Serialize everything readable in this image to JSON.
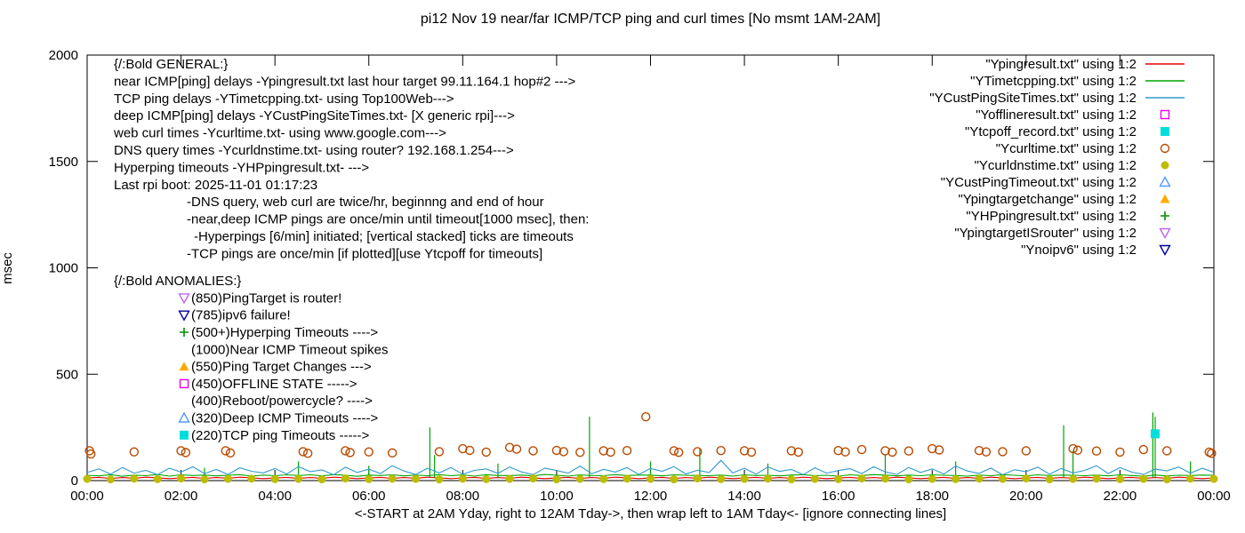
{
  "annotations": {
    "general": {
      "header": "{/:Bold GENERAL:}",
      "lines": [
        {
          "text": "near ICMP[ping] delays -Ypingresult.txt last hour target 99.11.164.1 hop#2 --->",
          "indent": 0
        },
        {
          "text": "TCP ping delays -YTimetcpping.txt- using Top100Web--->",
          "indent": 0
        },
        {
          "text": "deep ICMP[ping] delays -YCustPingSiteTimes.txt- [X generic rpi]--->",
          "indent": 0
        },
        {
          "text": "web curl times -Ycurltime.txt- using www.google.com--->",
          "indent": 0
        },
        {
          "text": "DNS query times -Ycurldnstime.txt- using router? 192.168.1.254--->",
          "indent": 0
        },
        {
          "text": "Hyperping timeouts -YHPpingresult.txt- --->",
          "indent": 0
        },
        {
          "text": "Last rpi boot: 2025-11-01 01:17:23",
          "indent": 0
        },
        {
          "text": "-DNS query, web curl are twice/hr, beginnng and end of hour",
          "indent": 1
        },
        {
          "text": "-near,deep ICMP pings are once/min until timeout[1000 msec], then:",
          "indent": 1
        },
        {
          "text": "-Hyperpings [6/min] initiated; [vertical stacked] ticks are timeouts",
          "indent": 2
        },
        {
          "text": "-TCP pings are once/min [if plotted][use Ytcpoff for timeouts]",
          "indent": 1
        }
      ]
    },
    "anomalies": {
      "header": "{/:Bold ANOMALIES:}",
      "items": [
        {
          "marker": "triangle-down-open",
          "color": "#bb66ee",
          "label": "(850)PingTarget is router!"
        },
        {
          "marker": "triangle-down-open",
          "color": "#000099",
          "label": "(785)ipv6 failure!"
        },
        {
          "marker": "plus",
          "color": "#009000",
          "label": "(500+)Hyperping Timeouts ---->"
        },
        {
          "marker": null,
          "color": null,
          "label": "(1000)Near ICMP Timeout spikes"
        },
        {
          "marker": "triangle-up-filled",
          "color": "#ffaa00",
          "label": "(550)Ping Target Changes --->"
        },
        {
          "marker": "square-open",
          "color": "#ee00ee",
          "label": "(450)OFFLINE STATE ----->"
        },
        {
          "marker": null,
          "color": null,
          "label": "(400)Reboot/powercycle? ---->"
        },
        {
          "marker": "triangle-up-open",
          "color": "#5599ff",
          "label": "(320)Deep ICMP Timeouts ---->"
        },
        {
          "marker": "square-filled",
          "color": "#00dddd",
          "label": "(220)TCP ping Timeouts ----->"
        }
      ]
    }
  },
  "chart_data": {
    "type": "line",
    "title": "pi12 Nov 19  near/far ICMP/TCP ping and curl times [No msmt 1AM-2AM]",
    "xlabel": "<-START at 2AM Yday, right to 12AM Tday->, then wrap left to 1AM Tday<- [ignore connecting lines]",
    "ylabel": "msec",
    "ylim": [
      0,
      2000
    ],
    "x_hours": [
      0,
      24
    ],
    "y_ticks": [
      0,
      500,
      1000,
      1500,
      2000
    ],
    "x_tick_labels": [
      "00:00",
      "02:00",
      "04:00",
      "06:00",
      "08:00",
      "10:00",
      "12:00",
      "14:00",
      "16:00",
      "18:00",
      "20:00",
      "22:00",
      "00:00"
    ],
    "grid": false,
    "legend_position": "top-right-outside-plot",
    "legend": [
      {
        "label": "\"Ypingresult.txt\" using 1:2",
        "marker": "line",
        "color": "#e60000"
      },
      {
        "label": "\"YTimetcpping.txt\" using 1:2",
        "marker": "line",
        "color": "#00a400"
      },
      {
        "label": "\"YCustPingSiteTimes.txt\" using 1:2",
        "marker": "line",
        "color": "#3399cc"
      },
      {
        "label": "\"Yofflineresult.txt\" using 1:2",
        "marker": "square-open",
        "color": "#ee00ee"
      },
      {
        "label": "\"Ytcpoff_record.txt\" using 1:2",
        "marker": "square-filled",
        "color": "#00dddd"
      },
      {
        "label": "\"Ycurltime.txt\" using 1:2",
        "marker": "circle-open",
        "color": "#b84a00"
      },
      {
        "label": "\"Ycurldnstime.txt\" using 1:2",
        "marker": "circle-filled",
        "color": "#bcbc00"
      },
      {
        "label": "\"YCustPingTimeout.txt\" using 1:2",
        "marker": "triangle-up-open",
        "color": "#5599ff"
      },
      {
        "label": "\"Ypingtargetchange\" using 1:2",
        "marker": "triangle-up-filled",
        "color": "#ffaa00"
      },
      {
        "label": "\"YHPpingresult.txt\" using 1:2",
        "marker": "plus",
        "color": "#009000"
      },
      {
        "label": "\"YpingtargetISrouter\" using 1:2",
        "marker": "triangle-down-open",
        "color": "#bb66ee"
      },
      {
        "label": "\"Ynoipv6\" using 1:2",
        "marker": "triangle-down-open",
        "color": "#000099"
      }
    ],
    "series": [
      {
        "name": "Ypingresult.txt",
        "type": "line",
        "color": "#e60000",
        "x_start": 0,
        "x_step": 0.25,
        "y": [
          12,
          15,
          10,
          14,
          11,
          16,
          13,
          9,
          12,
          15,
          10,
          14,
          11,
          16,
          13,
          9,
          12,
          15,
          10,
          14,
          11,
          16,
          13,
          9,
          12,
          15,
          10,
          14,
          11,
          16,
          13,
          9,
          12,
          15,
          10,
          14,
          11,
          16,
          13,
          9,
          12,
          15,
          10,
          14,
          11,
          16,
          13,
          9,
          12,
          15,
          10,
          14,
          11,
          16,
          13,
          9,
          12,
          15,
          10,
          14,
          11,
          16,
          13,
          9,
          12,
          15,
          10,
          14,
          11,
          16,
          13,
          9,
          12,
          15,
          10,
          14,
          11,
          16,
          13,
          9,
          12,
          15,
          10,
          14,
          11,
          16,
          13,
          9,
          12,
          15,
          10,
          14,
          11,
          16,
          13,
          9,
          12
        ]
      },
      {
        "name": "YTimetcpping.txt",
        "type": "line",
        "color": "#00a400",
        "x_start": 0,
        "x_step": 0.25,
        "y": [
          25,
          22,
          28,
          20,
          26,
          23,
          29,
          21,
          27,
          24,
          26,
          22,
          25,
          28,
          21,
          26,
          23,
          27,
          24,
          27,
          22,
          28,
          25,
          20,
          26,
          24,
          27,
          22,
          26,
          23,
          28,
          23,
          27,
          21,
          28,
          24,
          24,
          26,
          22,
          29,
          25,
          21,
          27,
          24,
          23,
          28,
          24,
          26,
          26,
          22,
          27,
          25,
          24,
          23,
          26,
          21,
          27,
          24,
          25,
          22,
          26,
          28,
          23,
          25,
          21,
          27,
          24,
          28,
          26,
          22,
          26,
          23,
          27,
          25,
          24,
          21,
          26,
          23,
          28,
          25,
          22,
          27,
          24,
          26,
          25,
          23,
          26,
          22,
          27,
          24,
          21,
          26,
          22,
          25,
          24,
          26,
          25
        ],
        "impulses": [
          [
            2.5,
            60
          ],
          [
            4.5,
            90
          ],
          [
            6.0,
            70
          ],
          [
            7.3,
            250
          ],
          [
            7.4,
            120
          ],
          [
            8.75,
            80
          ],
          [
            10.7,
            300
          ],
          [
            12.0,
            90
          ],
          [
            13.05,
            150
          ],
          [
            14.5,
            80
          ],
          [
            17.0,
            120
          ],
          [
            18.5,
            90
          ],
          [
            20.8,
            260
          ],
          [
            21.0,
            140
          ],
          [
            22.7,
            320
          ],
          [
            22.75,
            300
          ],
          [
            23.5,
            90
          ]
        ]
      },
      {
        "name": "YCustPingSiteTimes.txt",
        "type": "line",
        "color": "#3399cc",
        "x_start": 0,
        "x_step": 0.25,
        "y": [
          38,
          55,
          30,
          62,
          35,
          48,
          28,
          58,
          40,
          65,
          33,
          52,
          29,
          60,
          44,
          36,
          57,
          31,
          66,
          42,
          50,
          27,
          63,
          38,
          54,
          33,
          70,
          45,
          29,
          58,
          36,
          62,
          30,
          48,
          55,
          34,
          64,
          41,
          28,
          59,
          47,
          35,
          68,
          32,
          53,
          40,
          61,
          29,
          57,
          44,
          66,
          31,
          49,
          38,
          95,
          36,
          58,
          30,
          64,
          43,
          52,
          28,
          60,
          35,
          47,
          56,
          33,
          65,
          41,
          29,
          62,
          38,
          55,
          31,
          68,
          45,
          34,
          59,
          27,
          51,
          42,
          63,
          30,
          57,
          36,
          48,
          70,
          33,
          61,
          40,
          29,
          54,
          46,
          64,
          35,
          58,
          39
        ]
      },
      {
        "name": "Yofflineresult.txt",
        "type": "scatter",
        "marker": "square-open",
        "color": "#ee00ee",
        "points": []
      },
      {
        "name": "Ytcpoff_record.txt",
        "type": "scatter",
        "marker": "square-filled",
        "color": "#00dddd",
        "points": [
          [
            22.75,
            220
          ]
        ]
      },
      {
        "name": "Ycurltime.txt",
        "type": "scatter",
        "marker": "circle-open",
        "color": "#b84a00",
        "points": [
          [
            0.05,
            140
          ],
          [
            0.08,
            125
          ],
          [
            1.0,
            135
          ],
          [
            2.0,
            140
          ],
          [
            2.1,
            132
          ],
          [
            2.95,
            140
          ],
          [
            3.05,
            130
          ],
          [
            4.6,
            136
          ],
          [
            4.7,
            128
          ],
          [
            5.5,
            140
          ],
          [
            5.6,
            132
          ],
          [
            6.0,
            135
          ],
          [
            6.5,
            130
          ],
          [
            7.5,
            136
          ],
          [
            8.0,
            150
          ],
          [
            8.15,
            142
          ],
          [
            8.5,
            134
          ],
          [
            9.0,
            156
          ],
          [
            9.15,
            148
          ],
          [
            9.5,
            140
          ],
          [
            10.0,
            142
          ],
          [
            10.15,
            136
          ],
          [
            10.5,
            133
          ],
          [
            11.0,
            140
          ],
          [
            11.15,
            134
          ],
          [
            11.5,
            141
          ],
          [
            11.9,
            300
          ],
          [
            12.5,
            140
          ],
          [
            12.6,
            133
          ],
          [
            13.0,
            136
          ],
          [
            13.5,
            141
          ],
          [
            14.0,
            140
          ],
          [
            14.15,
            134
          ],
          [
            15.0,
            140
          ],
          [
            15.15,
            134
          ],
          [
            16.0,
            141
          ],
          [
            16.15,
            135
          ],
          [
            16.5,
            146
          ],
          [
            17.0,
            140
          ],
          [
            17.15,
            134
          ],
          [
            17.5,
            139
          ],
          [
            18.0,
            150
          ],
          [
            18.15,
            144
          ],
          [
            19.0,
            141
          ],
          [
            19.15,
            135
          ],
          [
            19.5,
            136
          ],
          [
            20.0,
            140
          ],
          [
            21.0,
            150
          ],
          [
            21.1,
            143
          ],
          [
            21.5,
            139
          ],
          [
            22.0,
            134
          ],
          [
            22.5,
            146
          ],
          [
            23.0,
            140
          ],
          [
            23.9,
            134
          ],
          [
            23.95,
            128
          ]
        ]
      },
      {
        "name": "Ycurldnstime.txt",
        "type": "scatter",
        "marker": "circle-filled",
        "color": "#bcbc00",
        "x_start": 0,
        "x_step": 0.5,
        "y": [
          8,
          6,
          9,
          7,
          10,
          6,
          8,
          9,
          7,
          8,
          6,
          10,
          7,
          9,
          8,
          6,
          9,
          7,
          8,
          10,
          6,
          8,
          7,
          9,
          8,
          6,
          10,
          7,
          8,
          9,
          6,
          8,
          7,
          10,
          9,
          6,
          8,
          7,
          9,
          8,
          10,
          6,
          8,
          9,
          7,
          8,
          6,
          9,
          8
        ]
      },
      {
        "name": "YCustPingTimeout.txt",
        "type": "scatter",
        "marker": "triangle-up-open",
        "color": "#5599ff",
        "points": []
      },
      {
        "name": "Ypingtargetchange",
        "type": "scatter",
        "marker": "triangle-up-filled",
        "color": "#ffaa00",
        "points": []
      },
      {
        "name": "YHPpingresult.txt",
        "type": "scatter",
        "marker": "plus",
        "color": "#009000",
        "points": []
      },
      {
        "name": "YpingtargetISrouter",
        "type": "scatter",
        "marker": "triangle-down-open",
        "color": "#bb66ee",
        "points": []
      },
      {
        "name": "Ynoipv6",
        "type": "scatter",
        "marker": "triangle-down-open",
        "color": "#000099",
        "points": []
      }
    ]
  }
}
